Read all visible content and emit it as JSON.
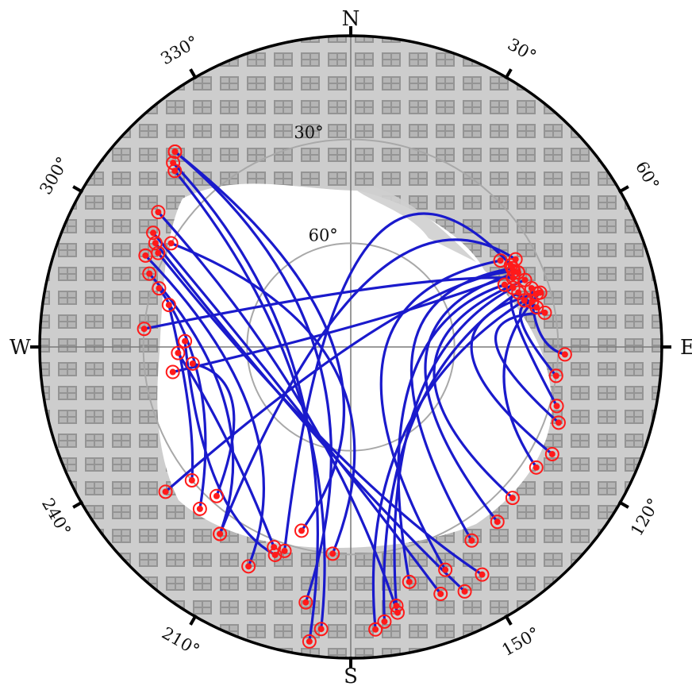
{
  "chart_data": {
    "type": "polar-sky-plot",
    "title": "",
    "cardinal_labels": {
      "north": "N",
      "east": "E",
      "south": "S",
      "west": "W"
    },
    "azimuth_tick_labels": [
      "30°",
      "60°",
      "120°",
      "150°",
      "210°",
      "240°",
      "300°",
      "330°"
    ],
    "elevation_ring_labels": [
      "30°",
      "60°"
    ],
    "series": [
      {
        "marker_color": "#ff1a1a",
        "line_color": "#1a1acc",
        "tracks": [
          {
            "points": [
              [
                318,
                14
              ],
              [
                270,
                85
              ],
              [
                195,
                35
              ]
            ]
          },
          {
            "points": [
              [
                318,
                14
              ],
              [
                255,
                80
              ],
              [
                190,
                15
              ]
            ]
          },
          {
            "points": [
              [
                316,
                16
              ],
              [
                240,
                72
              ],
              [
                188,
                4
              ]
            ]
          },
          {
            "points": [
              [
                315,
                18
              ],
              [
                230,
                70
              ],
              [
                186,
                8
              ]
            ]
          },
          {
            "points": [
              [
                305,
                22
              ],
              [
                220,
                68
              ],
              [
                170,
                12
              ]
            ]
          },
          {
            "points": [
              [
                300,
                24
              ],
              [
                210,
                65
              ],
              [
                160,
                14
              ]
            ]
          },
          {
            "points": [
              [
                298,
                26
              ],
              [
                200,
                62
              ],
              [
                155,
                12
              ]
            ]
          },
          {
            "points": [
              [
                296,
                28
              ],
              [
                190,
                60
              ],
              [
                150,
                14
              ]
            ]
          },
          {
            "points": [
              [
                300,
                30
              ],
              [
                215,
                82
              ],
              [
                185,
                30
              ]
            ]
          },
          {
            "points": [
              [
                294,
                25
              ],
              [
                235,
                55
              ],
              [
                205,
                20
              ]
            ]
          },
          {
            "points": [
              [
                290,
                28
              ],
              [
                245,
                50
              ],
              [
                215,
                24
              ]
            ]
          },
          {
            "points": [
              [
                287,
                32
              ],
              [
                255,
                45
              ],
              [
                223,
                26
              ]
            ]
          },
          {
            "points": [
              [
                283,
                36
              ],
              [
                250,
                40
              ],
              [
                230,
                30
              ]
            ]
          },
          {
            "points": [
              [
                272,
                42
              ],
              [
                225,
                35
              ],
              [
                200,
                26
              ]
            ]
          },
          {
            "points": [
              [
                268,
                40
              ],
              [
                232,
                45
              ],
              [
                201,
                28
              ]
            ]
          },
          {
            "points": [
              [
                264,
                44
              ],
              [
                244,
                52
              ],
              [
                222,
                32
              ]
            ]
          },
          {
            "points": [
              [
                68,
                42
              ],
              [
                120,
                70
              ],
              [
                166,
                20
              ]
            ]
          },
          {
            "points": [
              [
                70,
                40
              ],
              [
                130,
                65
              ],
              [
                170,
                14
              ]
            ]
          },
          {
            "points": [
              [
                72,
                39
              ],
              [
                140,
                62
              ],
              [
                173,
                10
              ]
            ]
          },
          {
            "points": [
              [
                75,
                38
              ],
              [
                150,
                60
              ],
              [
                175,
                8
              ]
            ]
          },
          {
            "points": [
              [
                60,
                40
              ],
              [
                110,
                80
              ],
              [
                157,
                20
              ]
            ]
          },
          {
            "points": [
              [
                64,
                38
              ],
              [
                95,
                72
              ],
              [
                148,
                24
              ]
            ]
          },
          {
            "points": [
              [
                66,
                37
              ],
              [
                100,
                68
              ],
              [
                140,
                24
              ]
            ]
          },
          {
            "points": [
              [
                69,
                36
              ],
              [
                105,
                65
              ],
              [
                133,
                26
              ]
            ]
          },
          {
            "points": [
              [
                74,
                34
              ],
              [
                92,
                55
              ],
              [
                118,
                24
              ]
            ]
          },
          {
            "points": [
              [
                80,
                33
              ],
              [
                88,
                48
              ],
              [
                110,
                26
              ]
            ]
          },
          {
            "points": [
              [
                78,
                35
              ],
              [
                76,
                42
              ],
              [
                106,
                28
              ]
            ]
          },
          {
            "points": [
              [
                76,
                36
              ],
              [
                82,
                40
              ],
              [
                98,
                30
              ]
            ]
          },
          {
            "points": [
              [
                72,
                35
              ],
              [
                86,
                35
              ],
              [
                92,
                28
              ]
            ]
          },
          {
            "points": [
              [
                74,
                33
              ],
              [
                100,
                45
              ],
              [
                123,
                26
              ]
            ]
          },
          {
            "points": [
              [
                65,
                38
              ],
              [
                55,
                82
              ],
              [
                232,
                22
              ]
            ]
          },
          {
            "points": [
              [
                66,
                37
              ],
              [
                40,
                80
              ],
              [
                262,
                38
              ]
            ]
          },
          {
            "points": [
              [
                67,
                39
              ],
              [
                20,
                72
              ],
              [
                275,
                30
              ]
            ]
          },
          {
            "points": [
              [
                62,
                36
              ],
              [
                15,
                70
              ],
              [
                215,
                24
              ]
            ]
          },
          {
            "points": [
              [
                63,
                38
              ],
              [
                10,
                60
              ],
              [
                198,
                28
              ]
            ]
          }
        ]
      }
    ]
  },
  "style": {
    "ring_color": "#000000",
    "grid_color": "#7a7a7a",
    "elevation_ring_color": "#a8a8a8",
    "sky_color": "#ffffff",
    "building_color": "#bdbdbd"
  }
}
